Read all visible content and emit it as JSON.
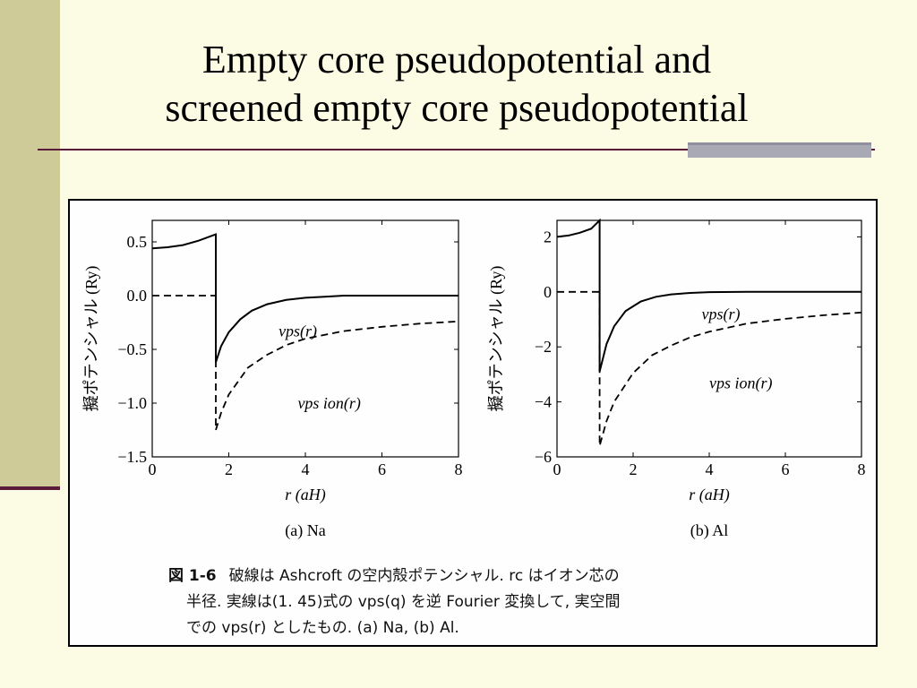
{
  "slide": {
    "title_line1": "Empty core pseudopotential and",
    "title_line2": "screened empty core pseudopotential"
  },
  "caption": {
    "fig_label": "図 1-6",
    "line1": "破線は Ashcroft の空内殻ポテンシャル.  rc はイオン芯の",
    "line2": "半径.  実線は(1. 45)式の vps(q) を逆 Fourier 変換して,  実空間",
    "line3": "での vps(r) としたもの.  (a) Na,  (b) Al."
  },
  "chart_data": [
    {
      "type": "line",
      "panel_label": "(a) Na",
      "ylabel": "擬ポテンシャル (Ry)",
      "xlabel": "r (aH)",
      "xlim": [
        0,
        8
      ],
      "ylim": [
        -1.5,
        0.7
      ],
      "x_ticks": [
        "0",
        "2",
        "4",
        "6",
        "8"
      ],
      "y_ticks": [
        "0.5",
        "0.0",
        "−0.5",
        "−1.0",
        "−1.5"
      ],
      "y_tick_values": [
        0.5,
        0.0,
        -0.5,
        -1.0,
        -1.5
      ],
      "core_radius": 1.66,
      "series": [
        {
          "name": "vps(r)",
          "style": "solid",
          "x": [
            0,
            0.4,
            0.8,
            1.2,
            1.66,
            1.66,
            1.8,
            2.0,
            2.3,
            2.6,
            3.0,
            3.5,
            4.0,
            4.5,
            5.0,
            6.0,
            7.0,
            8.0
          ],
          "y": [
            0.44,
            0.45,
            0.47,
            0.51,
            0.57,
            -0.62,
            -0.47,
            -0.34,
            -0.22,
            -0.14,
            -0.08,
            -0.04,
            -0.02,
            -0.01,
            0.0,
            0.0,
            0.0,
            0.0
          ]
        },
        {
          "name": "vps ion(r)",
          "style": "dashed",
          "x": [
            0,
            1.66,
            1.66,
            1.8,
            2.0,
            2.5,
            3.0,
            3.5,
            4.0,
            5.0,
            6.0,
            7.0,
            8.0
          ],
          "y": [
            0.0,
            0.0,
            -1.25,
            -1.09,
            -0.92,
            -0.67,
            -0.55,
            -0.46,
            -0.4,
            -0.33,
            -0.29,
            -0.26,
            -0.24
          ]
        }
      ]
    },
    {
      "type": "line",
      "panel_label": "(b) Al",
      "ylabel": "擬ポテンシャル (Ry)",
      "xlabel": "r (aH)",
      "xlim": [
        0,
        8
      ],
      "ylim": [
        -6,
        2.6
      ],
      "x_ticks": [
        "0",
        "2",
        "4",
        "6",
        "8"
      ],
      "y_ticks": [
        "2",
        "0",
        "−2",
        "−4",
        "−6"
      ],
      "y_tick_values": [
        2,
        0,
        -2,
        -4,
        -6
      ],
      "core_radius": 1.12,
      "series": [
        {
          "name": "vps(r)",
          "style": "solid",
          "x": [
            0,
            0.3,
            0.6,
            0.9,
            1.12,
            1.12,
            1.3,
            1.5,
            1.8,
            2.2,
            2.6,
            3.0,
            3.5,
            4.0,
            5.0,
            6.0,
            7.0,
            8.0
          ],
          "y": [
            2.0,
            2.05,
            2.15,
            2.3,
            2.6,
            -2.9,
            -1.9,
            -1.25,
            -0.7,
            -0.35,
            -0.18,
            -0.09,
            -0.04,
            -0.01,
            0.0,
            0.0,
            0.0,
            0.0
          ]
        },
        {
          "name": "vps ion(r)",
          "style": "dashed",
          "x": [
            0,
            1.12,
            1.12,
            1.3,
            1.5,
            2.0,
            2.5,
            3.0,
            3.5,
            4.0,
            5.0,
            6.0,
            7.0,
            8.0
          ],
          "y": [
            0.0,
            0.0,
            -5.6,
            -4.7,
            -4.0,
            -2.95,
            -2.3,
            -1.95,
            -1.65,
            -1.45,
            -1.15,
            -0.98,
            -0.85,
            -0.75
          ]
        }
      ]
    }
  ]
}
